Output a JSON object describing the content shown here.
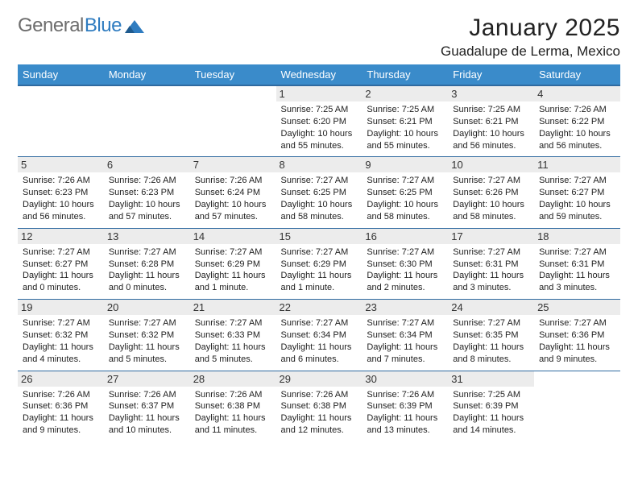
{
  "brand": {
    "part1": "General",
    "part2": "Blue",
    "logo_color": "#2f7cc0"
  },
  "title": "January 2025",
  "subtitle": "Guadalupe de Lerma, Mexico",
  "colors": {
    "header_bg": "#3a8bca",
    "header_text": "#ffffff",
    "row_border": "#2f6aa0",
    "daynum_bg": "#ececec"
  },
  "font": {
    "title_size": 30,
    "subtitle_size": 17,
    "header_size": 13,
    "day_size": 13,
    "info_size": 11
  },
  "weekdays": [
    "Sunday",
    "Monday",
    "Tuesday",
    "Wednesday",
    "Thursday",
    "Friday",
    "Saturday"
  ],
  "weeks": [
    [
      null,
      null,
      null,
      {
        "d": "1",
        "sunrise": "7:25 AM",
        "sunset": "6:20 PM",
        "daylight": "10 hours and 55 minutes."
      },
      {
        "d": "2",
        "sunrise": "7:25 AM",
        "sunset": "6:21 PM",
        "daylight": "10 hours and 55 minutes."
      },
      {
        "d": "3",
        "sunrise": "7:25 AM",
        "sunset": "6:21 PM",
        "daylight": "10 hours and 56 minutes."
      },
      {
        "d": "4",
        "sunrise": "7:26 AM",
        "sunset": "6:22 PM",
        "daylight": "10 hours and 56 minutes."
      }
    ],
    [
      {
        "d": "5",
        "sunrise": "7:26 AM",
        "sunset": "6:23 PM",
        "daylight": "10 hours and 56 minutes."
      },
      {
        "d": "6",
        "sunrise": "7:26 AM",
        "sunset": "6:23 PM",
        "daylight": "10 hours and 57 minutes."
      },
      {
        "d": "7",
        "sunrise": "7:26 AM",
        "sunset": "6:24 PM",
        "daylight": "10 hours and 57 minutes."
      },
      {
        "d": "8",
        "sunrise": "7:27 AM",
        "sunset": "6:25 PM",
        "daylight": "10 hours and 58 minutes."
      },
      {
        "d": "9",
        "sunrise": "7:27 AM",
        "sunset": "6:25 PM",
        "daylight": "10 hours and 58 minutes."
      },
      {
        "d": "10",
        "sunrise": "7:27 AM",
        "sunset": "6:26 PM",
        "daylight": "10 hours and 58 minutes."
      },
      {
        "d": "11",
        "sunrise": "7:27 AM",
        "sunset": "6:27 PM",
        "daylight": "10 hours and 59 minutes."
      }
    ],
    [
      {
        "d": "12",
        "sunrise": "7:27 AM",
        "sunset": "6:27 PM",
        "daylight": "11 hours and 0 minutes."
      },
      {
        "d": "13",
        "sunrise": "7:27 AM",
        "sunset": "6:28 PM",
        "daylight": "11 hours and 0 minutes."
      },
      {
        "d": "14",
        "sunrise": "7:27 AM",
        "sunset": "6:29 PM",
        "daylight": "11 hours and 1 minute."
      },
      {
        "d": "15",
        "sunrise": "7:27 AM",
        "sunset": "6:29 PM",
        "daylight": "11 hours and 1 minute."
      },
      {
        "d": "16",
        "sunrise": "7:27 AM",
        "sunset": "6:30 PM",
        "daylight": "11 hours and 2 minutes."
      },
      {
        "d": "17",
        "sunrise": "7:27 AM",
        "sunset": "6:31 PM",
        "daylight": "11 hours and 3 minutes."
      },
      {
        "d": "18",
        "sunrise": "7:27 AM",
        "sunset": "6:31 PM",
        "daylight": "11 hours and 3 minutes."
      }
    ],
    [
      {
        "d": "19",
        "sunrise": "7:27 AM",
        "sunset": "6:32 PM",
        "daylight": "11 hours and 4 minutes."
      },
      {
        "d": "20",
        "sunrise": "7:27 AM",
        "sunset": "6:32 PM",
        "daylight": "11 hours and 5 minutes."
      },
      {
        "d": "21",
        "sunrise": "7:27 AM",
        "sunset": "6:33 PM",
        "daylight": "11 hours and 5 minutes."
      },
      {
        "d": "22",
        "sunrise": "7:27 AM",
        "sunset": "6:34 PM",
        "daylight": "11 hours and 6 minutes."
      },
      {
        "d": "23",
        "sunrise": "7:27 AM",
        "sunset": "6:34 PM",
        "daylight": "11 hours and 7 minutes."
      },
      {
        "d": "24",
        "sunrise": "7:27 AM",
        "sunset": "6:35 PM",
        "daylight": "11 hours and 8 minutes."
      },
      {
        "d": "25",
        "sunrise": "7:27 AM",
        "sunset": "6:36 PM",
        "daylight": "11 hours and 9 minutes."
      }
    ],
    [
      {
        "d": "26",
        "sunrise": "7:26 AM",
        "sunset": "6:36 PM",
        "daylight": "11 hours and 9 minutes."
      },
      {
        "d": "27",
        "sunrise": "7:26 AM",
        "sunset": "6:37 PM",
        "daylight": "11 hours and 10 minutes."
      },
      {
        "d": "28",
        "sunrise": "7:26 AM",
        "sunset": "6:38 PM",
        "daylight": "11 hours and 11 minutes."
      },
      {
        "d": "29",
        "sunrise": "7:26 AM",
        "sunset": "6:38 PM",
        "daylight": "11 hours and 12 minutes."
      },
      {
        "d": "30",
        "sunrise": "7:26 AM",
        "sunset": "6:39 PM",
        "daylight": "11 hours and 13 minutes."
      },
      {
        "d": "31",
        "sunrise": "7:25 AM",
        "sunset": "6:39 PM",
        "daylight": "11 hours and 14 minutes."
      },
      null
    ]
  ],
  "labels": {
    "sunrise": "Sunrise:",
    "sunset": "Sunset:",
    "daylight": "Daylight:"
  }
}
